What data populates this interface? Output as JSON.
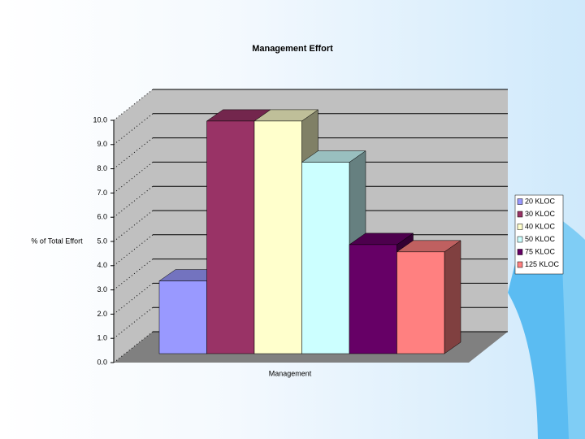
{
  "chart_data": {
    "type": "bar3d",
    "title": "Management Effort",
    "y_label": "% of Total Effort",
    "categories": [
      "Management"
    ],
    "ylim": [
      0,
      10
    ],
    "yticks": [
      {
        "value": 0,
        "label": "0.0"
      },
      {
        "value": 1,
        "label": "1.0"
      },
      {
        "value": 2,
        "label": "2.0"
      },
      {
        "value": 3,
        "label": "3.0"
      },
      {
        "value": 4,
        "label": "4.0"
      },
      {
        "value": 5,
        "label": "5.0"
      },
      {
        "value": 6,
        "label": "6.0"
      },
      {
        "value": 7,
        "label": "7.0"
      },
      {
        "value": 8,
        "label": "8.0"
      },
      {
        "value": 9,
        "label": "9.0"
      },
      {
        "value": 10,
        "label": "10.0"
      }
    ],
    "grid": true,
    "legend": "right",
    "series": [
      {
        "name": "20 KLOC",
        "color": "#9999ff",
        "values": [
          3.0
        ]
      },
      {
        "name": "30 KLOC",
        "color": "#993366",
        "values": [
          9.6
        ]
      },
      {
        "name": "40 KLOC",
        "color": "#ffffcc",
        "values": [
          9.6
        ]
      },
      {
        "name": "50 KLOC",
        "color": "#ccffff",
        "values": [
          7.9
        ]
      },
      {
        "name": "75 KLOC",
        "color": "#660066",
        "values": [
          4.5
        ]
      },
      {
        "name": "125 KLOC",
        "color": "#ff8080",
        "values": [
          4.2
        ]
      }
    ]
  }
}
